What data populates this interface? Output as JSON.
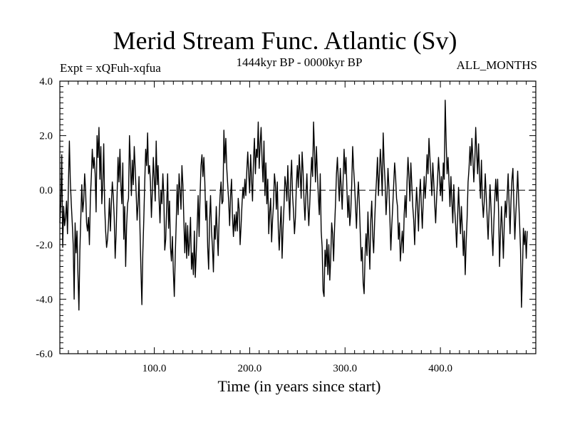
{
  "chart_data": {
    "type": "line",
    "title": "Merid Stream Func. Atlantic (Sv)",
    "left_label": "Expt = xQFuh-xqfua",
    "center_label": "1444kyr BP - 0000kyr BP",
    "right_label": "ALL_MONTHS",
    "xlabel": "Time (in years since start)",
    "ylabel": "",
    "xlim": [
      1,
      500
    ],
    "ylim": [
      -6.0,
      4.0
    ],
    "x_ticks": [
      100,
      200,
      300,
      400
    ],
    "x_tick_labels": [
      "100.0",
      "200.0",
      "300.0",
      "400.0"
    ],
    "y_ticks": [
      -6,
      -4,
      -2,
      0,
      2,
      4
    ],
    "y_tick_labels": [
      "-6.0",
      "-4.0",
      "-2.0",
      "0.0",
      "2.0",
      "4.0"
    ],
    "reference_line": 0.0,
    "series": [
      {
        "name": "Merid Stream Func. Atlantic",
        "color": "#000000",
        "x_start": 1,
        "x_step": 1,
        "values": [
          -1.2,
          -0.5,
          1.3,
          -2.1,
          -0.6,
          -1.3,
          -1.0,
          -0.4,
          -1.6,
          0.2,
          1.8,
          0.3,
          -0.5,
          -1.2,
          -2.0,
          -4.0,
          -1.2,
          -2.3,
          -1.5,
          -3.1,
          -4.4,
          -2.2,
          -1.0,
          0.2,
          -0.8,
          -0.4,
          0.6,
          0.0,
          -1.2,
          -1.5,
          -1.0,
          -2.0,
          -0.3,
          0.5,
          1.5,
          0.8,
          1.2,
          0.6,
          -0.8,
          2.0,
          1.2,
          2.3,
          0.4,
          1.6,
          -0.5,
          0.2,
          1.7,
          -0.6,
          -1.5,
          -2.1,
          -1.8,
          -1.2,
          -0.3,
          -1.5,
          -0.5,
          0.3,
          -0.2,
          -1.0,
          -2.5,
          -1.6,
          -0.2,
          1.2,
          0.3,
          1.5,
          0.2,
          -0.5,
          1.0,
          -1.8,
          -0.6,
          -2.8,
          -1.3,
          -0.5,
          -0.3,
          2.0,
          1.0,
          -0.2,
          1.1,
          0.2,
          1.6,
          0.8,
          -0.1,
          -1.1,
          -0.5,
          0.5,
          -1.4,
          -2.9,
          -4.2,
          -2.3,
          -1.1,
          0.3,
          1.5,
          0.9,
          2.1,
          0.6,
          0.9,
          0.3,
          -1.0,
          0.0,
          1.2,
          0.4,
          -0.4,
          1.8,
          0.2,
          0.9,
          -0.3,
          -1.2,
          0.0,
          -0.5,
          0.6,
          -0.2,
          -2.2,
          -1.8,
          -0.6,
          0.6,
          -1.4,
          -0.4,
          -2.1,
          -2.6,
          -1.7,
          -3.0,
          -3.9,
          -2.4,
          -1.2,
          0.2,
          -0.9,
          0.6,
          0.0,
          -0.7,
          0.9,
          0.2,
          -1.1,
          -2.3,
          -1.2,
          -2.5,
          -1.3,
          -2.4,
          -1.9,
          -1.0,
          -2.9,
          -2.3,
          -3.1,
          -1.5,
          -3.2,
          -2.3,
          -1.3,
          -0.2,
          -1.7,
          -0.2,
          0.9,
          1.3,
          0.5,
          1.2,
          0.3,
          -1.1,
          -0.4,
          -2.1,
          -2.9,
          -1.1,
          -0.2,
          -1.5,
          -2.1,
          -3.0,
          -1.3,
          -1.8,
          -0.6,
          -1.6,
          -2.4,
          -1.0,
          -0.2,
          0.3,
          -0.5,
          -0.4,
          2.2,
          1.0,
          1.9,
          0.8,
          0.2,
          -0.4,
          -1.3,
          -0.2,
          0.4,
          -1.0,
          -1.7,
          -0.9,
          -1.5,
          -0.8,
          -1.5,
          -0.3,
          -0.7,
          -2.0,
          -1.3,
          -0.5,
          0.1,
          -0.3,
          0.4,
          -0.2,
          0.7,
          1.4,
          0.6,
          -0.1,
          1.3,
          0.4,
          -0.4,
          1.1,
          1.9,
          0.6,
          1.5,
          1.2,
          2.5,
          0.8,
          1.7,
          2.3,
          1.1,
          0.3,
          1.8,
          -0.2,
          1.0,
          -0.5,
          0.4,
          -1.6,
          -0.8,
          -0.3,
          -1.9,
          -1.1,
          -0.5,
          0.6,
          0.2,
          -0.7,
          0.3,
          -1.4,
          -2.2,
          -1.3,
          -0.6,
          -2.5,
          -1.4,
          -0.6,
          0.5,
          0.2,
          -0.4,
          0.9,
          -0.2,
          -1.1,
          0.4,
          1.1,
          -0.2,
          -0.8,
          -1.6,
          -1.0,
          0.2,
          0.9,
          0.1,
          1.3,
          0.6,
          -0.3,
          1.4,
          0.7,
          -0.4,
          -1.1,
          -0.2,
          0.6,
          -0.5,
          -1.3,
          -0.5,
          0.4,
          1.2,
          0.5,
          2.5,
          1.4,
          0.3,
          1.6,
          0.6,
          -0.2,
          -0.9,
          0.6,
          -1.5,
          -2.1,
          -3.7,
          -3.9,
          -2.2,
          -2.8,
          -1.8,
          -3.1,
          -2.0,
          -3.3,
          -2.5,
          -1.2,
          -1.6,
          -2.6,
          -1.4,
          -0.5,
          0.6,
          1.2,
          0.3,
          -0.4,
          0.8,
          0.1,
          -0.7,
          0.4,
          1.5,
          0.6,
          1.2,
          0.0,
          -1.0,
          -0.2,
          -1.3,
          -0.8,
          0.2,
          1.6,
          0.8,
          0.2,
          -0.6,
          -1.4,
          -0.3,
          0.3,
          -0.5,
          -1.6,
          -2.6,
          -2.1,
          -3.4,
          -3.8,
          -2.4,
          -1.6,
          -2.4,
          -0.8,
          -1.9,
          -2.9,
          -1.1,
          -0.4,
          -1.7,
          -2.3,
          -1.2,
          -0.3,
          0.4,
          1.2,
          -0.2,
          0.6,
          1.5,
          0.8,
          -0.2,
          2.1,
          1.0,
          0.3,
          -0.9,
          -0.2,
          0.8,
          0.1,
          -1.0,
          -2.2,
          -1.3,
          -0.6,
          0.2,
          1.0,
          0.5,
          -0.3,
          -0.6,
          -1.8,
          -1.2,
          -2.6,
          -2.0,
          -1.5,
          -2.3,
          -0.9,
          -0.2,
          -1.0,
          0.3,
          1.2,
          0.5,
          -0.4,
          1.0,
          0.2,
          -0.6,
          -1.1,
          -2.0,
          -0.8,
          0.1,
          -0.6,
          -1.5,
          -0.2,
          0.4,
          -0.6,
          -1.4,
          -0.4,
          0.5,
          -0.3,
          0.3,
          1.3,
          0.6,
          1.9,
          1.2,
          0.5,
          -0.2,
          1.0,
          0.3,
          -0.5,
          -1.2,
          -0.3,
          0.4,
          1.2,
          0.6,
          -0.2,
          0.5,
          -0.4,
          1.0,
          0.4,
          3.3,
          1.8,
          0.6,
          1.2,
          0.3,
          -0.6,
          0.5,
          -0.4,
          -1.2,
          0.2,
          -0.7,
          -1.3,
          -2.1,
          -1.0,
          0.1,
          -0.8,
          -1.6,
          -0.6,
          -1.4,
          -2.4,
          -1.5,
          -3.1,
          -1.9,
          -1.0,
          0.3,
          0.8,
          1.6,
          0.9,
          1.9,
          1.2,
          0.3,
          1.0,
          2.3,
          1.4,
          0.6,
          1.7,
          0.5,
          -0.3,
          1.1,
          -0.4,
          -1.0,
          -0.4,
          0.6,
          -0.2,
          -1.0,
          -1.8,
          -0.8,
          0.2,
          -0.6,
          -1.6,
          -2.4,
          -1.2,
          -0.3,
          0.4,
          -0.4,
          0.4,
          -0.8,
          -2.8,
          -1.5,
          -0.6,
          -1.5,
          -2.5,
          -1.2,
          -0.4,
          -1.0,
          -0.2,
          0.6,
          -0.5,
          -1.6,
          -0.4,
          0.4,
          0.8,
          -0.5,
          -1.8,
          -0.9,
          -0.2,
          0.7,
          -0.3,
          -1.2,
          -2.2,
          -4.3,
          -3.0,
          -1.4,
          -2.0,
          -1.5,
          -2.5,
          -1.5
        ]
      }
    ]
  }
}
